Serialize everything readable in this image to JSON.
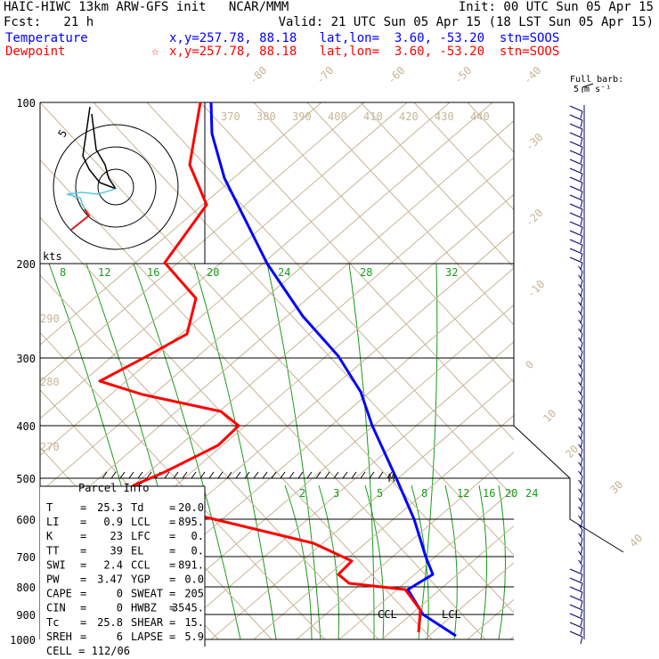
{
  "header": {
    "line1_left": "HAIC-HIWC 13km ARW-GFS init   NCAR/MMM",
    "line1_right": "Init: 00 UTC Sun 05 Apr 15",
    "line2_left": "Fcst:   21 h",
    "line2_right": "Valid: 21 UTC Sun 05 Apr 15 (18 LST Sun 05 Apr 15)",
    "temp_label": "Temperature",
    "temp_info": "x,y=257.78, 88.18   lat,lon=  3.60, -53.20  stn=SOOS",
    "dew_label": "Dewpoint",
    "dew_info": "x,y=257.78, 88.18   lat,lon=  3.60, -53.20  stn=SOOS",
    "dew_star": "☆",
    "barb_label_1": "Full barb:",
    "barb_label_2": "5 m s⁻¹"
  },
  "colors": {
    "temperature": "#0000ff",
    "dewpoint": "#ff0000",
    "isotherm": "#c8b496",
    "mixing_ratio": "#1a9a1a",
    "hodo_high": "#000000",
    "hodo_mid": "#5ac8e6",
    "hodo_low": "#dc1e1e"
  },
  "chart_data": {
    "type": "line",
    "pressure_levels": [
      {
        "p": 100,
        "label": "100"
      },
      {
        "p": 200,
        "label": "200"
      },
      {
        "p": 300,
        "label": "300"
      },
      {
        "p": 400,
        "label": "400"
      },
      {
        "p": 500,
        "label": "500"
      },
      {
        "p": 600,
        "label": "600"
      },
      {
        "p": 700,
        "label": "700"
      },
      {
        "p": 800,
        "label": "800"
      },
      {
        "p": 900,
        "label": "900"
      },
      {
        "p": 1000,
        "label": "1000"
      }
    ],
    "isotherm_labels": [
      "-80",
      "-70",
      "-60",
      "-50",
      "-40",
      "-30",
      "-20",
      "-10",
      "0",
      "10",
      "20",
      "30",
      "40"
    ],
    "theta_labels": [
      "370",
      "380",
      "390",
      "400",
      "410",
      "420",
      "430",
      "440"
    ],
    "theta_side_labels": [
      "290",
      "280",
      "270"
    ],
    "mixing_ratio_labels_upper": [
      "8",
      "12",
      "16",
      "20",
      "24",
      "28",
      "32"
    ],
    "mixing_ratio_labels_lower": [
      "2",
      "3",
      "5",
      "8",
      "12",
      "16",
      "20",
      "24"
    ],
    "series": [
      {
        "name": "Temperature",
        "points": [
          [
            100,
            237,
            115
          ],
          [
            120,
            238,
            150
          ],
          [
            150,
            252,
            200
          ],
          [
            200,
            300,
            296
          ],
          [
            250,
            340,
            355
          ],
          [
            300,
            380,
            400
          ],
          [
            350,
            405,
            440
          ],
          [
            400,
            418,
            478
          ],
          [
            500,
            445,
            537
          ],
          [
            600,
            465,
            583
          ],
          [
            700,
            478,
            625
          ],
          [
            770,
            486,
            645
          ],
          [
            800,
            458,
            662
          ],
          [
            850,
            475,
            690
          ],
          [
            1000,
            512,
            714
          ]
        ]
      },
      {
        "name": "Dewpoint",
        "points": [
          [
            100,
            225,
            115
          ],
          [
            150,
            213,
            185
          ],
          [
            180,
            232,
            230
          ],
          [
            200,
            185,
            295
          ],
          [
            250,
            220,
            335
          ],
          [
            280,
            210,
            375
          ],
          [
            300,
            165,
            400
          ],
          [
            330,
            112,
            428
          ],
          [
            360,
            160,
            443
          ],
          [
            390,
            248,
            462
          ],
          [
            400,
            268,
            478
          ],
          [
            450,
            245,
            500
          ],
          [
            500,
            185,
            530
          ],
          [
            540,
            150,
            545
          ],
          [
            600,
            228,
            580
          ],
          [
            700,
            352,
            610
          ],
          [
            720,
            395,
            630
          ],
          [
            740,
            380,
            645
          ],
          [
            770,
            392,
            655
          ],
          [
            800,
            455,
            662
          ],
          [
            850,
            472,
            685
          ],
          [
            1000,
            470,
            710
          ]
        ]
      }
    ],
    "hodograph": {
      "rings_label": "kts",
      "ring_labels": [
        "5"
      ]
    }
  },
  "parcel_info": {
    "title": "Parcel Info",
    "rows": [
      {
        "k1": "T",
        "v1": "25.3",
        "k2": "Td",
        "v2": "20.0"
      },
      {
        "k1": "LI",
        "v1": "0.9",
        "k2": "LCL",
        "v2": "895."
      },
      {
        "k1": "K",
        "v1": "23",
        "k2": "LFC",
        "v2": "0."
      },
      {
        "k1": "TT",
        "v1": "39",
        "k2": "EL",
        "v2": "0."
      },
      {
        "k1": "SWI",
        "v1": "2.4",
        "k2": "CCL",
        "v2": "891."
      },
      {
        "k1": "PW",
        "v1": "3.47",
        "k2": "YGP",
        "v2": "0.0"
      },
      {
        "k1": "CAPE",
        "v1": "0",
        "k2": "SWEAT",
        "v2": "205"
      },
      {
        "k1": "CIN",
        "v1": "0",
        "k2": "HWBZ",
        "v2": "3545."
      },
      {
        "k1": "Tc",
        "v1": "25.8",
        "k2": "SHEAR",
        "v2": "15."
      },
      {
        "k1": "SREH",
        "v1": "6",
        "k2": "LAPSE",
        "v2": "5.9"
      }
    ],
    "cell": "CELL = 112/06"
  },
  "annotations": {
    "ccl": "CCL",
    "lcl": "LCL",
    "m": "M"
  }
}
